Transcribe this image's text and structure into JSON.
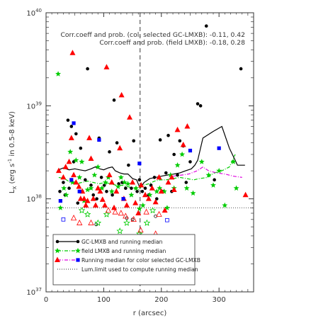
{
  "chart_data": {
    "type": "scatter",
    "xlabel": "r (arcsec)",
    "ylabel": "L_X (erg s^-1 in 0.5-8 keV)",
    "ylabel_parts": {
      "base": "L",
      "sub": "X",
      "pre": "(erg s",
      "sup": "-1",
      "post": " in 0.5-8 keV)"
    },
    "x_ticks": [
      0,
      100,
      200,
      300
    ],
    "x_tick_labels": [
      "0",
      "100",
      "200",
      "300"
    ],
    "xlim": [
      0,
      360
    ],
    "y_scale": "log",
    "ylim": [
      1e+37,
      1e+40
    ],
    "y_ticks": [
      1e+37,
      1e+38,
      1e+39,
      1e+40
    ],
    "y_tick_labels": [
      {
        "base": "10",
        "exp": "37"
      },
      {
        "base": "10",
        "exp": "38"
      },
      {
        "base": "10",
        "exp": "39"
      },
      {
        "base": "10",
        "exp": "40"
      }
    ],
    "annotations": [
      "Corr.coeff and prob. (col. selected GC-LMXB): -0.11, 0.42",
      "Corr.coeff and prob. (field LMXB): -0.18, 0.28"
    ],
    "vertical_line_x": 163,
    "lum_limit": 8e+37,
    "legend_position": "bottom-left",
    "legend": [
      {
        "label": "GC-LMXB and running median",
        "color": "#000000",
        "marker": "circle",
        "line": "solid"
      },
      {
        "label": "field LMXB and running median",
        "color": "#00cc00",
        "marker": "star",
        "line": "dash-dot"
      },
      {
        "label": "Running median for color selected GC-LMXB",
        "color": "#e000e0",
        "marker": "none",
        "line": "dash-dot"
      },
      {
        "label": "Lum.limit used to compute running median",
        "color": "#555555",
        "marker": "none",
        "line": "dotted"
      }
    ],
    "legend_extra_markers": [
      {
        "marker": "triangle",
        "color": "#ff0000"
      },
      {
        "marker": "square",
        "color": "#0000ff"
      }
    ],
    "series": [
      {
        "name": "GC-LMXB",
        "color": "#000000",
        "marker": "circle",
        "points": [
          [
            24,
            1.2e+38
          ],
          [
            30,
            1.5e+38
          ],
          [
            33,
            1.1e+38
          ],
          [
            38,
            7e+38
          ],
          [
            40,
            1.3e+38
          ],
          [
            44,
            6e+38
          ],
          [
            48,
            2.5e+38
          ],
          [
            52,
            5e+38
          ],
          [
            55,
            9e+37
          ],
          [
            60,
            3.5e+38
          ],
          [
            63,
            1.2e+38
          ],
          [
            68,
            1.6e+38
          ],
          [
            72,
            2.5e+39
          ],
          [
            78,
            1.4e+38
          ],
          [
            82,
            1.1e+38
          ],
          [
            88,
            1e+38
          ],
          [
            92,
            4.5e+38
          ],
          [
            96,
            1.7e+38
          ],
          [
            101,
            1.4e+38
          ],
          [
            105,
            1.2e+38
          ],
          [
            110,
            3.2e+38
          ],
          [
            115,
            1.1e+38
          ],
          [
            118,
            1.15e+39
          ],
          [
            123,
            4e+38
          ],
          [
            126,
            1.45e+38
          ],
          [
            132,
            1.5e+38
          ],
          [
            138,
            1.3e+38
          ],
          [
            143,
            2.3e+38
          ],
          [
            148,
            1.3e+38
          ],
          [
            152,
            4.2e+38
          ],
          [
            158,
            1.2e+38
          ],
          [
            162,
            1.6e+38
          ],
          [
            167,
            1.2e+38
          ],
          [
            172,
            1.3e+38
          ],
          [
            178,
            1.1e+38
          ],
          [
            182,
            1.4e+38
          ],
          [
            188,
            1.7e+38
          ],
          [
            192,
            1e+38
          ],
          [
            198,
            4.3e+38
          ],
          [
            203,
            1.2e+38
          ],
          [
            208,
            1.9e+38
          ],
          [
            212,
            4.8e+38
          ],
          [
            218,
            1.2e+38
          ],
          [
            222,
            3e+38
          ],
          [
            228,
            1.8e+38
          ],
          [
            232,
            4.2e+38
          ],
          [
            238,
            3.7e+38
          ],
          [
            243,
            1.5e+38
          ],
          [
            250,
            2.5e+38
          ],
          [
            263,
            1.05e+39
          ],
          [
            268,
            1e+39
          ],
          [
            278,
            7.2e+39
          ],
          [
            292,
            1.6e+38
          ],
          [
            338,
            2.5e+39
          ]
        ]
      },
      {
        "name": "field LMXB",
        "color": "#00cc00",
        "marker": "star",
        "points": [
          [
            21,
            2.2e+39
          ],
          [
            25,
            8e+37
          ],
          [
            31,
            1.3e+38
          ],
          [
            35,
            1.1e+38
          ],
          [
            42,
            3.2e+38
          ],
          [
            46,
            1.5e+38
          ],
          [
            52,
            2.6e+38
          ],
          [
            58,
            1.7e+38
          ],
          [
            62,
            2.5e+38
          ],
          [
            66,
            9.5e+37
          ],
          [
            72,
            1.25e+38
          ],
          [
            78,
            1.3e+38
          ],
          [
            84,
            1.8e+38
          ],
          [
            90,
            2.2e+38
          ],
          [
            97,
            1.3e+38
          ],
          [
            103,
            1.5e+38
          ],
          [
            108,
            1.7e+38
          ],
          [
            114,
            1.2e+38
          ],
          [
            125,
            1.35e+38
          ],
          [
            130,
            1.7e+38
          ],
          [
            136,
            1.5e+38
          ],
          [
            142,
            1.45e+38
          ],
          [
            148,
            1.1e+38
          ],
          [
            156,
            1.3e+38
          ],
          [
            162,
            7.8e+37
          ],
          [
            168,
            8.5e+37
          ],
          [
            180,
            1.1e+38
          ],
          [
            192,
            1.2e+38
          ],
          [
            197,
            1.3e+38
          ],
          [
            205,
            1.2e+38
          ],
          [
            210,
            8e+37
          ],
          [
            216,
            1.8e+38
          ],
          [
            222,
            1.3e+38
          ],
          [
            228,
            2.3e+38
          ],
          [
            236,
            3e+38
          ],
          [
            244,
            1.3e+38
          ],
          [
            255,
            1.15e+38
          ],
          [
            270,
            2.5e+38
          ],
          [
            282,
            1.8e+38
          ],
          [
            290,
            1.4e+38
          ],
          [
            300,
            2e+38
          ],
          [
            310,
            8.5e+37
          ],
          [
            325,
            2.5e+38
          ],
          [
            330,
            1.3e+38
          ]
        ]
      },
      {
        "name": "GC-LMXB (below limit)",
        "color": "#000000",
        "marker": "circle-open",
        "points": [
          [
            87,
            5.3e+37
          ],
          [
            140,
            6.2e+37
          ],
          [
            150,
            6e+37
          ],
          [
            190,
            6.5e+37
          ]
        ]
      },
      {
        "name": "field LMXB (below limit)",
        "color": "#00cc00",
        "marker": "star-open",
        "points": [
          [
            62,
            7.5e+37
          ],
          [
            72,
            6.8e+37
          ],
          [
            90,
            5.5e+37
          ],
          [
            105,
            6.8e+37
          ],
          [
            128,
            4.5e+37
          ],
          [
            140,
            5.5e+37
          ],
          [
            162,
            4.2e+37
          ],
          [
            175,
            5.5e+37
          ],
          [
            185,
            7.5e+37
          ]
        ]
      },
      {
        "name": "red triangles",
        "color": "#ff0000",
        "marker": "triangle",
        "points": [
          [
            22,
            2e+38
          ],
          [
            30,
            1.7e+38
          ],
          [
            34,
            2.2e+38
          ],
          [
            40,
            2.5e+38
          ],
          [
            44,
            4.5e+38
          ],
          [
            46,
            3.7e+39
          ],
          [
            48,
            1.8e+38
          ],
          [
            52,
            1.5e+38
          ],
          [
            57,
            1.35e+38
          ],
          [
            60,
            1e+38
          ],
          [
            63,
            1.2e+38
          ],
          [
            66,
            1e+38
          ],
          [
            69,
            8.5e+37
          ],
          [
            72,
            9.5e+37
          ],
          [
            75,
            4.5e+38
          ],
          [
            78,
            2.7e+38
          ],
          [
            82,
            1e+38
          ],
          [
            86,
            8.5e+37
          ],
          [
            90,
            1.3e+38
          ],
          [
            94,
            1.2e+38
          ],
          [
            98,
            9.8e+37
          ],
          [
            102,
            8.5e+37
          ],
          [
            105,
            2.6e+39
          ],
          [
            110,
            1.8e+38
          ],
          [
            114,
            1.5e+38
          ],
          [
            118,
            8e+37
          ],
          [
            122,
            1.2e+38
          ],
          [
            128,
            3.5e+38
          ],
          [
            131,
            1.3e+39
          ],
          [
            135,
            1e+38
          ],
          [
            140,
            8.5e+37
          ],
          [
            145,
            7.5e+38
          ],
          [
            150,
            1.5e+38
          ],
          [
            155,
            9e+37
          ],
          [
            160,
            7e+37
          ],
          [
            165,
            1.4e+38
          ],
          [
            172,
            1.1e+38
          ],
          [
            178,
            1e+38
          ],
          [
            184,
            1.3e+38
          ],
          [
            190,
            9.2e+37
          ],
          [
            196,
            1.7e+38
          ],
          [
            200,
            1.2e+38
          ],
          [
            206,
            7.5e+37
          ],
          [
            212,
            1.5e+38
          ],
          [
            218,
            1.7e+38
          ],
          [
            222,
            1.25e+38
          ],
          [
            228,
            5.5e+38
          ],
          [
            238,
            3.8e+38
          ],
          [
            245,
            6e+38
          ],
          [
            346,
            1.1e+38
          ]
        ]
      },
      {
        "name": "red triangles (below limit)",
        "color": "#ff0000",
        "marker": "triangle-open",
        "points": [
          [
            48,
            6.2e+37
          ],
          [
            58,
            5.5e+37
          ],
          [
            78,
            5.5e+37
          ],
          [
            108,
            7.5e+37
          ],
          [
            120,
            7.2e+37
          ],
          [
            130,
            7e+37
          ],
          [
            138,
            6.5e+37
          ],
          [
            152,
            6e+37
          ],
          [
            164,
            4.6e+37
          ],
          [
            174,
            7.2e+37
          ],
          [
            190,
            4.2e+37
          ],
          [
            196,
            6.8e+37
          ]
        ]
      },
      {
        "name": "blue squares",
        "color": "#0000ff",
        "marker": "square",
        "points": [
          [
            25,
            9.5e+37
          ],
          [
            44,
            1.6e+38
          ],
          [
            48,
            6.5e+38
          ],
          [
            58,
            1.2e+38
          ],
          [
            92,
            4.3e+38
          ],
          [
            134,
            1e+38
          ],
          [
            162,
            2.4e+38
          ],
          [
            250,
            3.3e+38
          ],
          [
            300,
            3.5e+38
          ]
        ]
      },
      {
        "name": "blue squares (below limit)",
        "color": "#0000ff",
        "marker": "square-open",
        "points": [
          [
            30,
            6e+37
          ],
          [
            210,
            5.9e+37
          ]
        ]
      }
    ],
    "median_lines": [
      {
        "name": "GC-LMXB running median",
        "color": "#000000",
        "style": "solid",
        "points": [
          [
            22,
            2.05e+38
          ],
          [
            30,
            2.15e+38
          ],
          [
            40,
            2.05e+38
          ],
          [
            50,
            2.1e+38
          ],
          [
            58,
            2.05e+38
          ],
          [
            68,
            2e+38
          ],
          [
            78,
            2.1e+38
          ],
          [
            85,
            2.2e+38
          ],
          [
            93,
            2.1e+38
          ],
          [
            100,
            2.05e+38
          ],
          [
            108,
            2.15e+38
          ],
          [
            115,
            2.2e+38
          ],
          [
            120,
            2e+38
          ],
          [
            128,
            1.9e+38
          ],
          [
            135,
            1.85e+38
          ],
          [
            142,
            1.85e+38
          ],
          [
            150,
            1.65e+38
          ],
          [
            157,
            1.6e+38
          ],
          [
            163,
            1.3e+38
          ],
          [
            170,
            1.5e+38
          ],
          [
            180,
            1.65e+38
          ],
          [
            190,
            1.7e+38
          ],
          [
            200,
            1.75e+38
          ],
          [
            210,
            1.8e+38
          ],
          [
            222,
            1.85e+38
          ],
          [
            232,
            1.9e+38
          ],
          [
            242,
            2e+38
          ],
          [
            252,
            2.1e+38
          ],
          [
            258,
            2.3e+38
          ],
          [
            263,
            2.6e+38
          ],
          [
            272,
            4.5e+38
          ],
          [
            290,
            5.3e+38
          ],
          [
            305,
            6e+38
          ],
          [
            318,
            3.5e+38
          ],
          [
            328,
            2.6e+38
          ],
          [
            332,
            2.3e+38
          ],
          [
            340,
            2.3e+38
          ],
          [
            345,
            2.3e+38
          ]
        ]
      },
      {
        "name": "field LMXB running median",
        "color": "#00cc00",
        "style": "dash-dot",
        "points": [
          [
            22,
            1.7e+38
          ],
          [
            32,
            1.65e+38
          ],
          [
            42,
            1.5e+38
          ],
          [
            52,
            1.45e+38
          ],
          [
            62,
            1.5e+38
          ],
          [
            72,
            1.55e+38
          ],
          [
            82,
            1.5e+38
          ],
          [
            92,
            1.45e+38
          ],
          [
            102,
            1.5e+38
          ],
          [
            112,
            1.45e+38
          ],
          [
            122,
            1.4e+38
          ],
          [
            132,
            1.4e+38
          ],
          [
            142,
            1.35e+38
          ],
          [
            152,
            1.3e+38
          ],
          [
            160,
            1.25e+38
          ],
          [
            168,
            1.4e+38
          ],
          [
            178,
            1.45e+38
          ],
          [
            188,
            1.55e+38
          ],
          [
            198,
            1.6e+38
          ],
          [
            208,
            1.6e+38
          ],
          [
            220,
            1.65e+38
          ],
          [
            232,
            1.7e+38
          ],
          [
            244,
            1.65e+38
          ],
          [
            256,
            1.6e+38
          ],
          [
            266,
            1.65e+38
          ],
          [
            280,
            1.7e+38
          ],
          [
            292,
            1.9e+38
          ],
          [
            305,
            2e+38
          ],
          [
            318,
            2.2e+38
          ],
          [
            328,
            3e+38
          ]
        ]
      },
      {
        "name": "color selected GC-LMXB running median",
        "color": "#e000e0",
        "style": "dash-dot",
        "points": [
          [
            220,
            1.75e+38
          ],
          [
            235,
            1.8e+38
          ],
          [
            248,
            1.85e+38
          ],
          [
            262,
            2e+38
          ],
          [
            272,
            2.2e+38
          ],
          [
            282,
            2e+38
          ],
          [
            296,
            1.9e+38
          ],
          [
            310,
            1.85e+38
          ],
          [
            325,
            1.75e+38
          ],
          [
            340,
            1.7e+38
          ]
        ]
      }
    ]
  }
}
